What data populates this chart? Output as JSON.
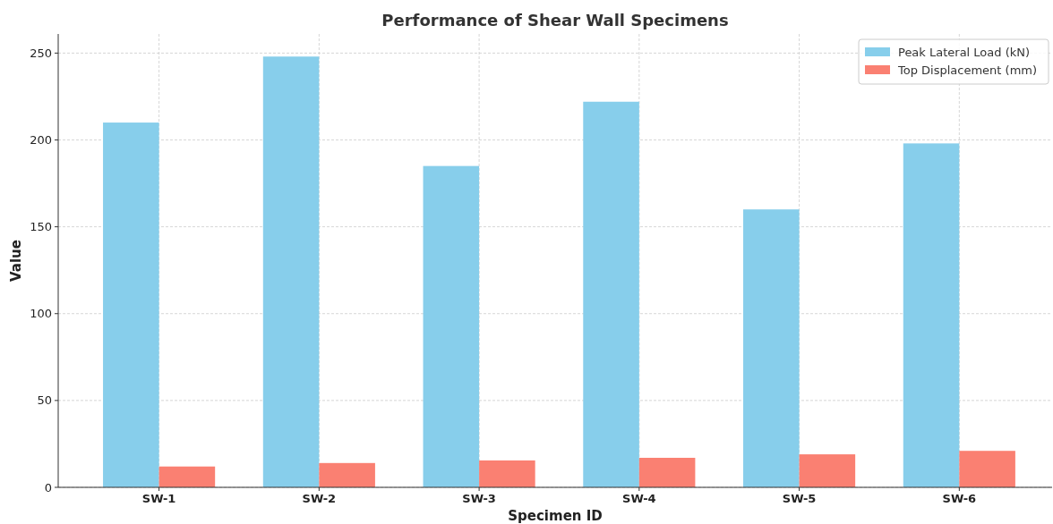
{
  "chart_data": {
    "type": "bar",
    "title": "Performance of Shear Wall Specimens",
    "xlabel": "Specimen ID",
    "ylabel": "Value",
    "categories": [
      "SW-1",
      "SW-2",
      "SW-3",
      "SW-4",
      "SW-5",
      "SW-6"
    ],
    "series": [
      {
        "name": "Peak Lateral Load (kN)",
        "color": "#87ceeb",
        "values": [
          210,
          248,
          185,
          222,
          160,
          198
        ]
      },
      {
        "name": "Top Displacement (mm)",
        "color": "#fa8072",
        "values": [
          12,
          14,
          15.5,
          17,
          19,
          21
        ]
      }
    ],
    "ylim": [
      0,
      261
    ],
    "yticks": [
      0,
      50,
      100,
      150,
      200,
      250
    ],
    "grid": true,
    "legend": "top right"
  }
}
